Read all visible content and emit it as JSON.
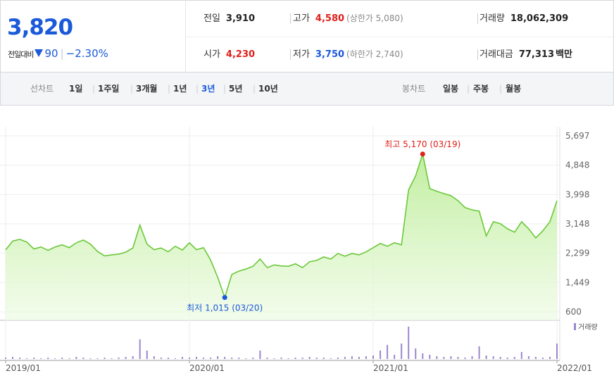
{
  "header": {
    "price": "3,820",
    "change_label": "전일대비",
    "change": "90",
    "change_rate": "−2.30%"
  },
  "summary": {
    "rows": [
      [
        {
          "label": "전일",
          "value": "3,910"
        },
        {
          "label": "고가",
          "value": "4,580",
          "color": "#e0201a",
          "limit": "(상한가 5,080)"
        },
        {
          "label": "거래량",
          "value": "18,062,309"
        }
      ],
      [
        {
          "label": "시가",
          "value": "4,230",
          "color": "#e0201a"
        },
        {
          "label": "저가",
          "value": "3,750",
          "color": "#1a5ad9",
          "limit": "(하한가 2,740)"
        },
        {
          "label": "거래대금",
          "value": "77,313",
          "unit": "백만"
        }
      ]
    ]
  },
  "tabs": {
    "line_label": "선차트",
    "periods": [
      "1일",
      "1주일",
      "3개월",
      "1년",
      "3년",
      "5년",
      "10년"
    ],
    "selected": 4,
    "candle_label": "봉차트",
    "candles": [
      "일봉",
      "주봉",
      "월봉"
    ]
  },
  "chart_data": {
    "type": "line",
    "categories": [
      "2019/01",
      null,
      null,
      null,
      null,
      null,
      null,
      null,
      null,
      null,
      null,
      null,
      null,
      null,
      null,
      null,
      null,
      null,
      null,
      null,
      null,
      null,
      null,
      null,
      null,
      null,
      "2020/01",
      null,
      null,
      null,
      null,
      null,
      null,
      null,
      null,
      null,
      null,
      null,
      null,
      null,
      null,
      null,
      null,
      null,
      null,
      null,
      null,
      null,
      null,
      null,
      null,
      null,
      "2021/01",
      null,
      null,
      null,
      null,
      null,
      null,
      null,
      null,
      null,
      null,
      null,
      null,
      null,
      null,
      null,
      null,
      null,
      null,
      null,
      null,
      null,
      null,
      null,
      null,
      null,
      "2022/01"
    ],
    "series": [
      {
        "color": "#6cc83a",
        "values": [
          2395,
          2650,
          2700,
          2620,
          2420,
          2480,
          2380,
          2480,
          2540,
          2460,
          2600,
          2680,
          2560,
          2350,
          2220,
          2250,
          2270,
          2330,
          2450,
          3110,
          2560,
          2400,
          2450,
          2340,
          2500,
          2390,
          2600,
          2400,
          2460,
          2100,
          1600,
          1015,
          1680,
          1780,
          1840,
          1920,
          2130,
          1880,
          1960,
          1930,
          1920,
          1990,
          1880,
          2050,
          2090,
          2190,
          2130,
          2290,
          2210,
          2290,
          2250,
          2340,
          2460,
          2580,
          2500,
          2600,
          2540,
          4130,
          4535,
          5170,
          4170,
          4090,
          4025,
          3965,
          3820,
          3620,
          3555,
          3515,
          2800,
          3210,
          3150,
          3005,
          2905,
          3210,
          3005,
          2740,
          2945,
          3210,
          3820
        ]
      },
      {
        "name": "거래량",
        "type": "bar",
        "axis": "y2",
        "color": "#9b87cf",
        "values": [
          4,
          6,
          4,
          2,
          4,
          2,
          4,
          2,
          4,
          2,
          6,
          4,
          2,
          2,
          4,
          2,
          4,
          6,
          8,
          56,
          24,
          8,
          4,
          4,
          2,
          6,
          4,
          6,
          4,
          4,
          8,
          6,
          4,
          4,
          2,
          4,
          24,
          4,
          2,
          4,
          2,
          4,
          4,
          6,
          4,
          4,
          2,
          4,
          6,
          8,
          6,
          8,
          10,
          24,
          40,
          12,
          44,
          92,
          30,
          16,
          12,
          8,
          6,
          8,
          6,
          4,
          8,
          36,
          10,
          8,
          6,
          4,
          6,
          20,
          8,
          6,
          4,
          6,
          44
        ]
      }
    ],
    "ylim": [
      600,
      5697
    ],
    "yticks": [
      600,
      {
        "value": 1449,
        "label": "1,449"
      },
      {
        "value": 2299,
        "label": "2,299"
      },
      {
        "value": 3148,
        "label": "3,148"
      },
      {
        "value": 3998,
        "label": "3,998"
      },
      {
        "value": 4848,
        "label": "4,848"
      },
      {
        "value": 5697,
        "label": "5,697"
      }
    ],
    "y2lim": [
      0,
      100
    ],
    "grid": true,
    "annotations": [
      {
        "text": "최고 5,170 (03/19)",
        "at": "max",
        "color": "#e0201a"
      },
      {
        "text": "최저 1,015 (03/20)",
        "at": "min",
        "color": "#1a5ad9"
      }
    ]
  }
}
